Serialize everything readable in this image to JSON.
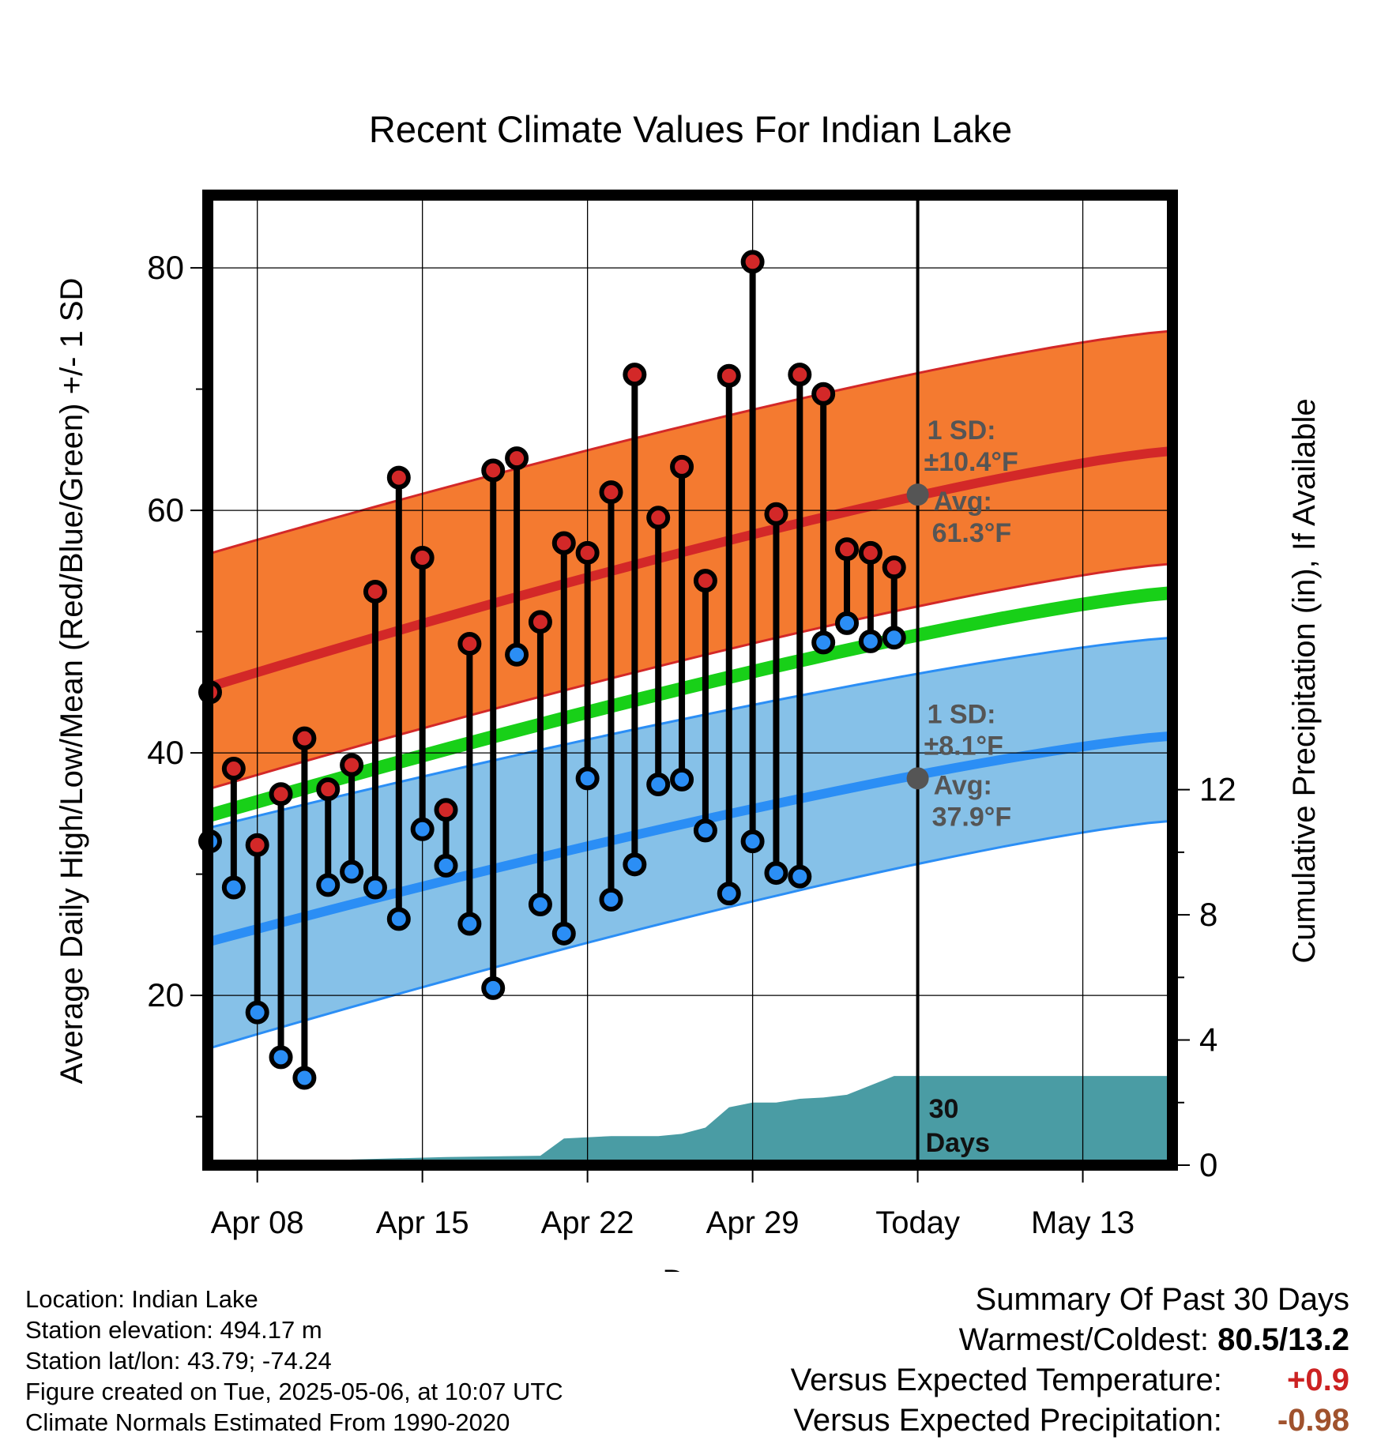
{
  "chart_data": {
    "type": "line",
    "title": "Recent Climate Values For Indian Lake",
    "xlabel": "Day",
    "ylabel": "Average Daily High/Low/Mean (Red/Blue/Green) +/- 1 SD",
    "y2label": "Cumulative Precipitation (in), If Available",
    "ylim": [
      6,
      86
    ],
    "y2lim": [
      0,
      31
    ],
    "yticks": [
      20,
      40,
      60,
      80
    ],
    "y2ticks": [
      0,
      4,
      8,
      12
    ],
    "xlim": [
      0.9,
      41.8
    ],
    "xticks": [
      {
        "day": 3,
        "label": "Apr 08"
      },
      {
        "day": 10,
        "label": "Apr 15"
      },
      {
        "day": 17,
        "label": "Apr 22"
      },
      {
        "day": 24,
        "label": "Apr 29"
      },
      {
        "day": 31,
        "label": "Today"
      },
      {
        "day": 38,
        "label": "May 13"
      }
    ],
    "grid": true,
    "days": [
      1,
      2,
      3,
      4,
      5,
      6,
      7,
      8,
      9,
      10,
      11,
      12,
      13,
      14,
      15,
      16,
      17,
      18,
      19,
      20,
      21,
      22,
      23,
      24,
      25,
      26,
      27,
      28,
      29,
      30
    ],
    "highs": [
      45.0,
      38.7,
      32.4,
      36.6,
      41.2,
      37.0,
      39.0,
      53.3,
      62.7,
      56.1,
      35.3,
      49.0,
      63.3,
      64.3,
      50.8,
      57.3,
      56.5,
      61.5,
      71.2,
      59.4,
      63.6,
      54.2,
      71.1,
      80.5,
      59.7,
      71.2,
      69.6,
      56.8,
      56.5,
      55.3
    ],
    "lows": [
      32.7,
      28.9,
      18.6,
      14.9,
      13.2,
      29.1,
      30.2,
      28.9,
      26.3,
      33.7,
      30.7,
      25.9,
      20.6,
      48.1,
      27.5,
      25.1,
      37.9,
      27.9,
      30.8,
      37.4,
      37.8,
      33.6,
      28.4,
      32.7,
      30.1,
      29.8,
      49.1,
      50.7,
      49.2,
      49.5
    ],
    "normals": {
      "day_start": 0.9,
      "day_end": 41.8,
      "high_mean": [
        45.4,
        64.9
      ],
      "high_sd_upper": [
        56.4,
        74.8
      ],
      "high_sd_lower": [
        37.0,
        55.6
      ],
      "low_mean": [
        24.4,
        41.4
      ],
      "low_sd_upper": [
        33.8,
        49.5
      ],
      "low_sd_lower": [
        15.6,
        34.4
      ],
      "mean_line": [
        34.8,
        53.2
      ]
    },
    "today_high": {
      "day": 31,
      "value": 61.3,
      "label_line1": "1 SD:",
      "label_line2": "±10.4°F",
      "label_line3": "Avg:",
      "label_line4": "61.3°F"
    },
    "today_low": {
      "day": 31,
      "value": 37.9,
      "label_line1": "1 SD:",
      "label_line2": "±8.1°F",
      "label_line3": "Avg:",
      "label_line4": "37.9°F"
    },
    "precip_cumulative": {
      "days": [
        0.9,
        6,
        7,
        11,
        15,
        16,
        18,
        20,
        21,
        22,
        23,
        24,
        25,
        26,
        27,
        28,
        29,
        30,
        31,
        41.8
      ],
      "values": [
        0,
        0,
        0.18,
        0.26,
        0.3,
        0.85,
        0.93,
        0.93,
        1.0,
        1.2,
        1.85,
        2.0,
        2.0,
        2.12,
        2.16,
        2.25,
        2.55,
        2.85,
        2.85,
        2.85
      ]
    },
    "period_label_line1": "30",
    "period_label_line2": "Days",
    "colors": {
      "high": "#d32828",
      "low": "#2b8ef5",
      "high_band": "#f47a30",
      "low_band": "#86c1e8",
      "mean": "#18d018",
      "precip": "#4a9ca4",
      "label": "#555555"
    }
  },
  "info": {
    "location": "Location: Indian Lake",
    "elevation": "Station elevation: 494.17 m",
    "latlon": "Station lat/lon: 43.79; -74.24",
    "created": "Figure created on Tue, 2025-05-06, at 10:07 UTC",
    "normals": "Climate Normals Estimated From 1990-2020"
  },
  "summary": {
    "heading": "Summary Of Past 30 Days",
    "warmest_coldest_label": "Warmest/Coldest:",
    "warmest_coldest_value": "80.5/13.2",
    "temp_label": "Versus Expected Temperature:",
    "temp_value": "+0.9",
    "temp_color": "#cc2222",
    "precip_label": "Versus Expected Precipitation:",
    "precip_value": "-0.98",
    "precip_color": "#a0522d"
  }
}
